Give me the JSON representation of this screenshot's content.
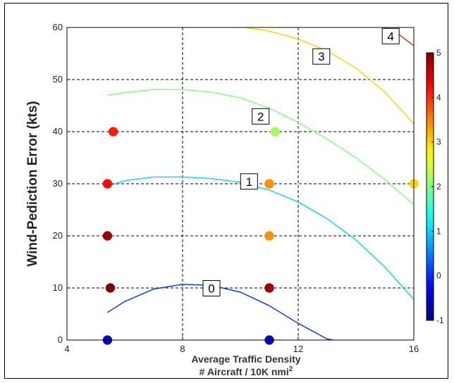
{
  "chart_data": {
    "type": "scatter",
    "title": "",
    "xlabel_line1": "Average Traffic Density",
    "xlabel_line2": "# Aircraft / 10K nmi",
    "xlabel_superscript": "2",
    "ylabel": "Wind-Pediction Error (kts)",
    "xlim": [
      4,
      16
    ],
    "ylim": [
      0,
      60
    ],
    "xticks": [
      "4",
      "8",
      "12",
      "16"
    ],
    "yticks": [
      "0",
      "10",
      "20",
      "30",
      "40",
      "50",
      "60"
    ],
    "grid": "dashed",
    "colorbar": {
      "range": [
        -1,
        5
      ],
      "ticks": [
        "-1",
        "0",
        "1",
        "2",
        "3",
        "4",
        "5"
      ],
      "colormap": "jet"
    },
    "points": [
      {
        "x": 5.4,
        "y": 0,
        "value": -0.5
      },
      {
        "x": 5.5,
        "y": 10,
        "value": 5
      },
      {
        "x": 5.4,
        "y": 20,
        "value": 4.8
      },
      {
        "x": 5.4,
        "y": 30,
        "value": 4.2
      },
      {
        "x": 5.6,
        "y": 40,
        "value": 4.1
      },
      {
        "x": 11,
        "y": 0,
        "value": -0.5
      },
      {
        "x": 11,
        "y": 10,
        "value": 4.8
      },
      {
        "x": 11,
        "y": 20,
        "value": 3.4
      },
      {
        "x": 11,
        "y": 30,
        "value": 3.4
      },
      {
        "x": 11.2,
        "y": 40,
        "value": 2.2
      },
      {
        "x": 16,
        "y": 30,
        "value": 3.0
      }
    ],
    "contours": [
      {
        "label": "0",
        "level": 0,
        "label_x": 9.0,
        "label_y": 9.8,
        "points": [
          [
            5.4,
            5.3
          ],
          [
            6,
            7.4
          ],
          [
            7,
            9.8
          ],
          [
            8,
            10.7
          ],
          [
            9,
            10.5
          ],
          [
            10,
            9.2
          ],
          [
            11,
            6.6
          ],
          [
            12,
            3.2
          ],
          [
            13,
            0.2
          ],
          [
            13.2,
            0
          ]
        ]
      },
      {
        "label": "1",
        "level": 1,
        "label_x": 10.3,
        "label_y": 30.3,
        "points": [
          [
            5.4,
            29.5
          ],
          [
            6,
            30.6
          ],
          [
            7,
            31.3
          ],
          [
            8,
            31.3
          ],
          [
            9,
            31.0
          ],
          [
            10,
            30.3
          ],
          [
            11,
            28.8
          ],
          [
            12,
            26.5
          ],
          [
            13,
            23.3
          ],
          [
            14,
            19.2
          ],
          [
            15,
            14.0
          ],
          [
            16,
            7.8
          ]
        ]
      },
      {
        "label": "2",
        "level": 2,
        "label_x": 10.7,
        "label_y": 42.8,
        "points": [
          [
            5.4,
            47.0
          ],
          [
            6,
            47.5
          ],
          [
            7,
            48.1
          ],
          [
            8,
            48.1
          ],
          [
            9,
            47.6
          ],
          [
            10,
            46.5
          ],
          [
            11,
            44.5
          ],
          [
            12,
            41.8
          ],
          [
            13,
            38.6
          ],
          [
            14,
            35.0
          ],
          [
            15,
            30.8
          ],
          [
            16,
            26.0
          ]
        ]
      },
      {
        "label": "3",
        "level": 3,
        "label_x": 12.8,
        "label_y": 54.3,
        "points": [
          [
            10.2,
            60
          ],
          [
            11,
            59.3
          ],
          [
            12,
            57.8
          ],
          [
            13,
            55.5
          ],
          [
            14,
            52.2
          ],
          [
            15,
            47.6
          ],
          [
            16,
            41.5
          ]
        ]
      },
      {
        "label": "4",
        "level": 4,
        "label_x": 15.2,
        "label_y": 58.2,
        "points": [
          [
            15.0,
            60
          ],
          [
            15.5,
            58.6
          ],
          [
            16,
            56.5
          ]
        ]
      }
    ]
  }
}
